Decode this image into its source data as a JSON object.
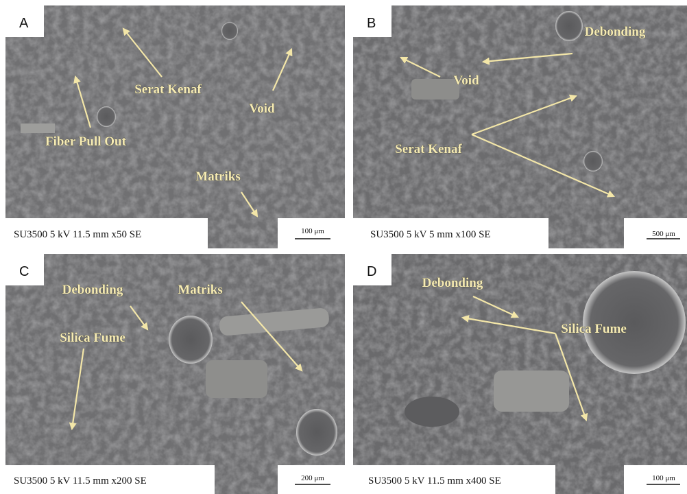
{
  "panels": [
    {
      "letter": "A",
      "caption": "SU3500 5 kV 11.5 mm x50 SE",
      "scale": "100 μm",
      "labels": [
        "Serat Kenaf",
        "Void",
        "Fiber Pull Out",
        "Matriks"
      ]
    },
    {
      "letter": "B",
      "caption": "SU3500 5 kV 5 mm x100 SE",
      "scale": "500 μm",
      "labels": [
        "Debonding",
        "Void",
        "Serat Kenaf"
      ]
    },
    {
      "letter": "C",
      "caption": "SU3500 5 kV 11.5 mm x200 SE",
      "scale": "200 μm",
      "labels": [
        "Debonding",
        "Matriks",
        "Silica Fume"
      ]
    },
    {
      "letter": "D",
      "caption": "SU3500 5 kV 11.5 mm x400 SE",
      "scale": "100 μm",
      "labels": [
        "Debonding",
        "Silica Fume"
      ]
    }
  ]
}
